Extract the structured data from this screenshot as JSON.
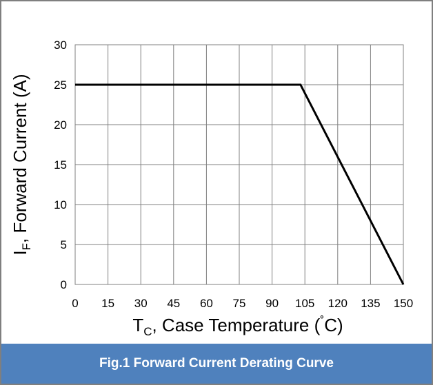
{
  "chart_data": {
    "type": "line",
    "title": "",
    "xlabel_main": "T",
    "xlabel_sub": "C",
    "xlabel_rest": ", Case Temperature (",
    "xlabel_degree": "˚",
    "xlabel_unit": "C)",
    "ylabel_main": "I",
    "ylabel_sub": "F",
    "ylabel_rest": ", Forward Current (A)",
    "xlim": [
      0,
      150
    ],
    "ylim": [
      0,
      30
    ],
    "xticks": [
      "0",
      "15",
      "30",
      "45",
      "60",
      "75",
      "90",
      "105",
      "120",
      "135",
      "150"
    ],
    "yticks": [
      "0",
      "5",
      "10",
      "15",
      "20",
      "25",
      "30"
    ],
    "grid": true,
    "series": [
      {
        "x": [
          0,
          103,
          150
        ],
        "y": [
          25,
          25,
          0
        ],
        "color": "#000000"
      }
    ]
  },
  "caption": "Fig.1 Forward Current Derating Curve",
  "colors": {
    "caption_background": "#4f81bd",
    "caption_text": "#ffffff",
    "grid": "#808080",
    "line": "#000000",
    "frame": "#7f7f7f"
  }
}
